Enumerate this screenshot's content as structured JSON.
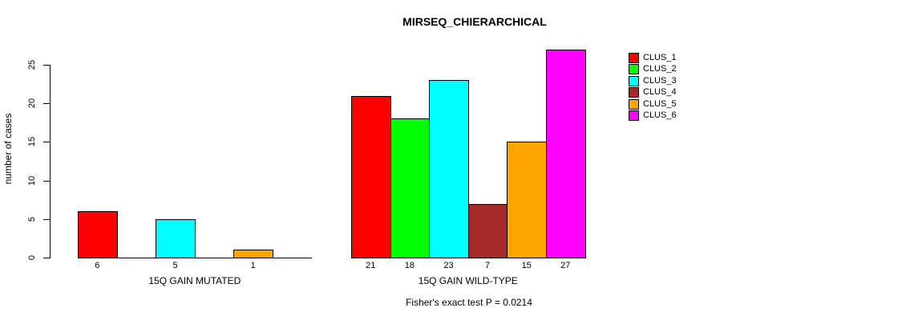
{
  "title": "MIRSEQ_CHIERARCHICAL",
  "caption": "Fisher's exact test P = 0.0214",
  "colors": {
    "background": "#ffffff",
    "axis": "#000000",
    "text": "#000000"
  },
  "chart_data": {
    "type": "bar",
    "title": "MIRSEQ_CHIERARCHICAL",
    "xlabel": "",
    "ylabel": "number of cases",
    "ylim": [
      0,
      25
    ],
    "yticks": [
      "0",
      "5",
      "10",
      "15",
      "20",
      "25"
    ],
    "grid": false,
    "legend_position": "top-right-outside",
    "categories": [
      "15Q GAIN MUTATED",
      "15Q GAIN WILD-TYPE"
    ],
    "series": [
      {
        "name": "CLUS_1",
        "color": "#ff0000",
        "values": [
          6,
          21
        ]
      },
      {
        "name": "CLUS_2",
        "color": "#00ff00",
        "values": [
          0,
          18
        ]
      },
      {
        "name": "CLUS_3",
        "color": "#00ffff",
        "values": [
          5,
          23
        ]
      },
      {
        "name": "CLUS_4",
        "color": "#a52a2a",
        "values": [
          0,
          7
        ]
      },
      {
        "name": "CLUS_5",
        "color": "#ffa500",
        "values": [
          1,
          15
        ]
      },
      {
        "name": "CLUS_6",
        "color": "#ff00ff",
        "values": [
          0,
          27
        ]
      }
    ],
    "bar_value_labels": [
      [
        "6",
        "",
        "5",
        "",
        "1",
        ""
      ],
      [
        "21",
        "18",
        "23",
        "7",
        "15",
        "27"
      ]
    ],
    "annotation": "Fisher's exact test P = 0.0214"
  }
}
